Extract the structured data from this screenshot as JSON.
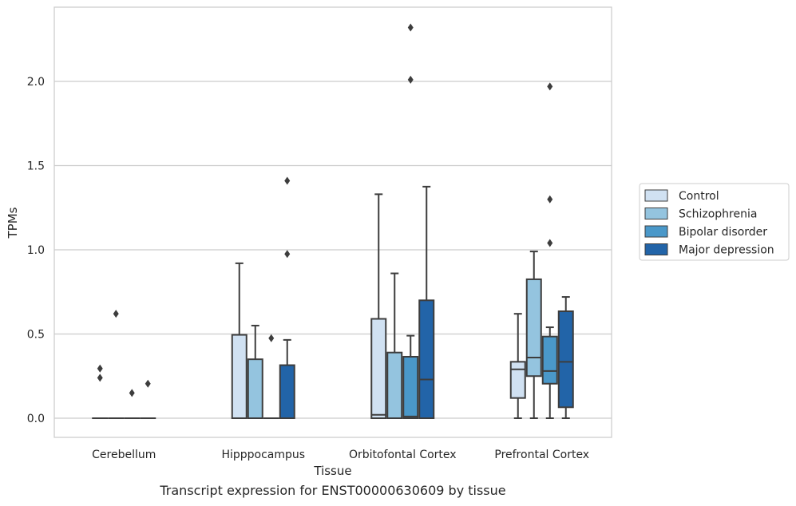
{
  "caption": "Transcript expression for ENST00000630609 by tissue",
  "chart_data": {
    "type": "boxplot",
    "xlabel": "Tissue",
    "ylabel": "TPMs",
    "ylim": [
      -0.11,
      2.43
    ],
    "yticks": [
      "0.0",
      "0.5",
      "1.0",
      "1.5",
      "2.0"
    ],
    "yticks_values": [
      0.0,
      0.5,
      1.0,
      1.5,
      2.0
    ],
    "grid": "horizontal",
    "legend_position": "right",
    "categories": [
      "Cerebellum",
      "Hipppocampus",
      "Orbitofontal Cortex",
      "Prefrontal Cortex"
    ],
    "series": [
      {
        "name": "Control",
        "color": "#d0e1f2",
        "boxes": [
          {
            "whislo": 0,
            "q1": 0,
            "med": 0,
            "q3": 0,
            "whishi": 0,
            "fliers": [
              0.24,
              0.295
            ]
          },
          {
            "whislo": 0,
            "q1": 0,
            "med": 0,
            "q3": 0.495,
            "whishi": 0.92,
            "fliers": []
          },
          {
            "whislo": 0,
            "q1": 0,
            "med": 0.02,
            "q3": 0.59,
            "whishi": 1.33,
            "fliers": []
          },
          {
            "whislo": 0,
            "q1": 0.12,
            "med": 0.29,
            "q3": 0.335,
            "whishi": 0.62,
            "fliers": []
          }
        ]
      },
      {
        "name": "Schizophrenia",
        "color": "#94c4df",
        "boxes": [
          {
            "whislo": 0,
            "q1": 0,
            "med": 0,
            "q3": 0,
            "whishi": 0,
            "fliers": [
              0.62
            ]
          },
          {
            "whislo": 0,
            "q1": 0,
            "med": 0,
            "q3": 0.35,
            "whishi": 0.55,
            "fliers": []
          },
          {
            "whislo": 0,
            "q1": 0,
            "med": 0,
            "q3": 0.39,
            "whishi": 0.86,
            "fliers": []
          },
          {
            "whislo": 0,
            "q1": 0.25,
            "med": 0.36,
            "q3": 0.825,
            "whishi": 0.99,
            "fliers": []
          }
        ]
      },
      {
        "name": "Bipolar disorder",
        "color": "#4a98c9",
        "boxes": [
          {
            "whislo": 0,
            "q1": 0,
            "med": 0,
            "q3": 0,
            "whishi": 0,
            "fliers": [
              0.15
            ]
          },
          {
            "whislo": 0,
            "q1": 0,
            "med": 0,
            "q3": 0,
            "whishi": 0,
            "fliers": [
              0.475
            ]
          },
          {
            "whislo": 0,
            "q1": 0,
            "med": 0.01,
            "q3": 0.365,
            "whishi": 0.49,
            "fliers": [
              2.01,
              2.32
            ]
          },
          {
            "whislo": 0,
            "q1": 0.205,
            "med": 0.28,
            "q3": 0.485,
            "whishi": 0.54,
            "fliers": [
              1.04,
              1.3,
              1.97
            ]
          }
        ]
      },
      {
        "name": "Major depression",
        "color": "#2264a8",
        "boxes": [
          {
            "whislo": 0,
            "q1": 0,
            "med": 0,
            "q3": 0,
            "whishi": 0,
            "fliers": [
              0.205
            ]
          },
          {
            "whislo": 0,
            "q1": 0,
            "med": 0,
            "q3": 0.315,
            "whishi": 0.465,
            "fliers": [
              0.975,
              1.41
            ]
          },
          {
            "whislo": 0,
            "q1": 0,
            "med": 0.23,
            "q3": 0.7,
            "whishi": 1.375,
            "fliers": []
          },
          {
            "whislo": 0,
            "q1": 0.065,
            "med": 0.335,
            "q3": 0.635,
            "whishi": 0.72,
            "fliers": []
          }
        ]
      }
    ]
  }
}
